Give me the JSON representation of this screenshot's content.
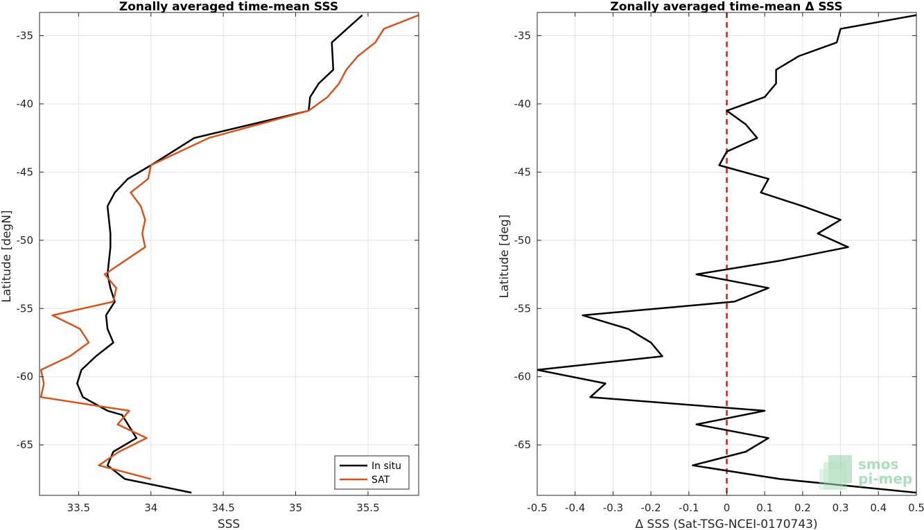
{
  "chart_data": [
    {
      "type": "line",
      "title": "Zonally averaged time-mean SSS",
      "xlabel": "SSS",
      "ylabel": "Latitude [degN]",
      "xlim": [
        33.23,
        35.85
      ],
      "ylim": [
        -68.7,
        -33.3
      ],
      "xticks": [
        33.5,
        34,
        34.5,
        35,
        35.5
      ],
      "xtick_labels": [
        "33.5",
        "34",
        "34.5",
        "35",
        "35.5"
      ],
      "yticks": [
        -65,
        -60,
        -55,
        -50,
        -45,
        -40,
        -35
      ],
      "ytick_labels": [
        "-65",
        "-60",
        "-55",
        "-50",
        "-45",
        "-40",
        "-35"
      ],
      "grid": true,
      "legend_position": "bottom-right",
      "series": [
        {
          "name": "In situ",
          "color": "#000000",
          "points": [
            [
              35.46,
              -33.5
            ],
            [
              35.25,
              -35.5
            ],
            [
              35.26,
              -37.5
            ],
            [
              35.16,
              -38.5
            ],
            [
              35.1,
              -39.5
            ],
            [
              35.09,
              -40.5
            ],
            [
              34.3,
              -42.5
            ],
            [
              34.0,
              -44.5
            ],
            [
              33.84,
              -45.5
            ],
            [
              33.75,
              -46.5
            ],
            [
              33.7,
              -47.5
            ],
            [
              33.71,
              -48.5
            ],
            [
              33.72,
              -49.5
            ],
            [
              33.72,
              -50.5
            ],
            [
              33.71,
              -51.5
            ],
            [
              33.7,
              -52.5
            ],
            [
              33.72,
              -53.5
            ],
            [
              33.75,
              -54.5
            ],
            [
              33.69,
              -55.5
            ],
            [
              33.7,
              -56.5
            ],
            [
              33.74,
              -57.5
            ],
            [
              33.62,
              -58.5
            ],
            [
              33.52,
              -59.5
            ],
            [
              33.49,
              -60.5
            ],
            [
              33.53,
              -61.5
            ],
            [
              33.7,
              -62.5
            ],
            [
              33.8,
              -62.8
            ],
            [
              33.9,
              -64.5
            ],
            [
              33.74,
              -65.5
            ],
            [
              33.7,
              -66.5
            ],
            [
              33.82,
              -67.5
            ],
            [
              34.28,
              -68.5
            ]
          ]
        },
        {
          "name": "SAT",
          "color": "#d95319",
          "points": [
            [
              35.85,
              -33.5
            ],
            [
              35.61,
              -34.5
            ],
            [
              35.55,
              -35.5
            ],
            [
              35.43,
              -36.5
            ],
            [
              35.35,
              -37.5
            ],
            [
              35.3,
              -38.5
            ],
            [
              35.22,
              -39.5
            ],
            [
              35.09,
              -40.5
            ],
            [
              34.4,
              -42.5
            ],
            [
              34.2,
              -43.5
            ],
            [
              34.0,
              -44.5
            ],
            [
              33.98,
              -45.5
            ],
            [
              33.86,
              -46.5
            ],
            [
              33.93,
              -47.5
            ],
            [
              33.96,
              -48.5
            ],
            [
              33.94,
              -49.5
            ],
            [
              33.96,
              -50.5
            ],
            [
              33.68,
              -52.5
            ],
            [
              33.76,
              -53.5
            ],
            [
              33.74,
              -54.5
            ],
            [
              33.32,
              -55.5
            ],
            [
              33.51,
              -56.5
            ],
            [
              33.57,
              -57.5
            ],
            [
              33.44,
              -58.5
            ],
            [
              33.24,
              -59.5
            ],
            [
              33.26,
              -60.5
            ],
            [
              33.24,
              -61.5
            ],
            [
              33.85,
              -62.5
            ],
            [
              33.77,
              -63.5
            ],
            [
              33.97,
              -64.5
            ],
            [
              33.78,
              -65.5
            ],
            [
              33.64,
              -66.5
            ],
            [
              34.0,
              -67.5
            ]
          ]
        }
      ]
    },
    {
      "type": "line",
      "title": "Zonally averaged time-mean Δ SSS",
      "xlabel": "Δ SSS (Sat-TSG-NCEI-0170743)",
      "ylabel": "Latitude [deg]",
      "xlim": [
        -0.5,
        0.5
      ],
      "ylim": [
        -68.7,
        -33.3
      ],
      "xticks": [
        -0.5,
        -0.4,
        -0.3,
        -0.2,
        -0.1,
        0,
        0.1,
        0.2,
        0.3,
        0.4,
        0.5
      ],
      "xtick_labels": [
        "-0.5",
        "-0.4",
        "-0.3",
        "-0.2",
        "-0.1",
        "0",
        "0.1",
        "0.2",
        "0.3",
        "0.4",
        "0.5"
      ],
      "yticks": [
        -65,
        -60,
        -55,
        -50,
        -45,
        -40,
        -35
      ],
      "ytick_labels": [
        "-65",
        "-60",
        "-55",
        "-50",
        "-45",
        "-40",
        "-35"
      ],
      "grid": true,
      "reference_line": {
        "x": 0,
        "color": "#e01818",
        "style": "dashed"
      },
      "series": [
        {
          "color": "#000000",
          "points": [
            [
              0.5,
              -33.5
            ],
            [
              0.3,
              -34.5
            ],
            [
              0.29,
              -35.5
            ],
            [
              0.19,
              -36.5
            ],
            [
              0.13,
              -37.5
            ],
            [
              0.13,
              -38.5
            ],
            [
              0.1,
              -39.5
            ],
            [
              0.0,
              -40.5
            ],
            [
              0.05,
              -41.5
            ],
            [
              0.08,
              -42.5
            ],
            [
              0.0,
              -43.5
            ],
            [
              -0.02,
              -44.5
            ],
            [
              0.11,
              -45.5
            ],
            [
              0.09,
              -46.5
            ],
            [
              0.2,
              -47.5
            ],
            [
              0.3,
              -48.5
            ],
            [
              0.24,
              -49.5
            ],
            [
              0.32,
              -50.5
            ],
            [
              0.14,
              -51.5
            ],
            [
              -0.08,
              -52.5
            ],
            [
              0.11,
              -53.5
            ],
            [
              0.02,
              -54.5
            ],
            [
              -0.38,
              -55.5
            ],
            [
              -0.26,
              -56.5
            ],
            [
              -0.2,
              -57.5
            ],
            [
              -0.17,
              -58.5
            ],
            [
              -0.5,
              -59.5
            ],
            [
              -0.32,
              -60.5
            ],
            [
              -0.36,
              -61.5
            ],
            [
              0.1,
              -62.5
            ],
            [
              -0.08,
              -63.5
            ],
            [
              0.11,
              -64.5
            ],
            [
              0.05,
              -65.5
            ],
            [
              -0.09,
              -66.5
            ],
            [
              0.14,
              -67.5
            ],
            [
              0.5,
              -68.5
            ]
          ]
        }
      ]
    }
  ],
  "legend": {
    "insitu_label": "In situ",
    "sat_label": "SAT"
  }
}
